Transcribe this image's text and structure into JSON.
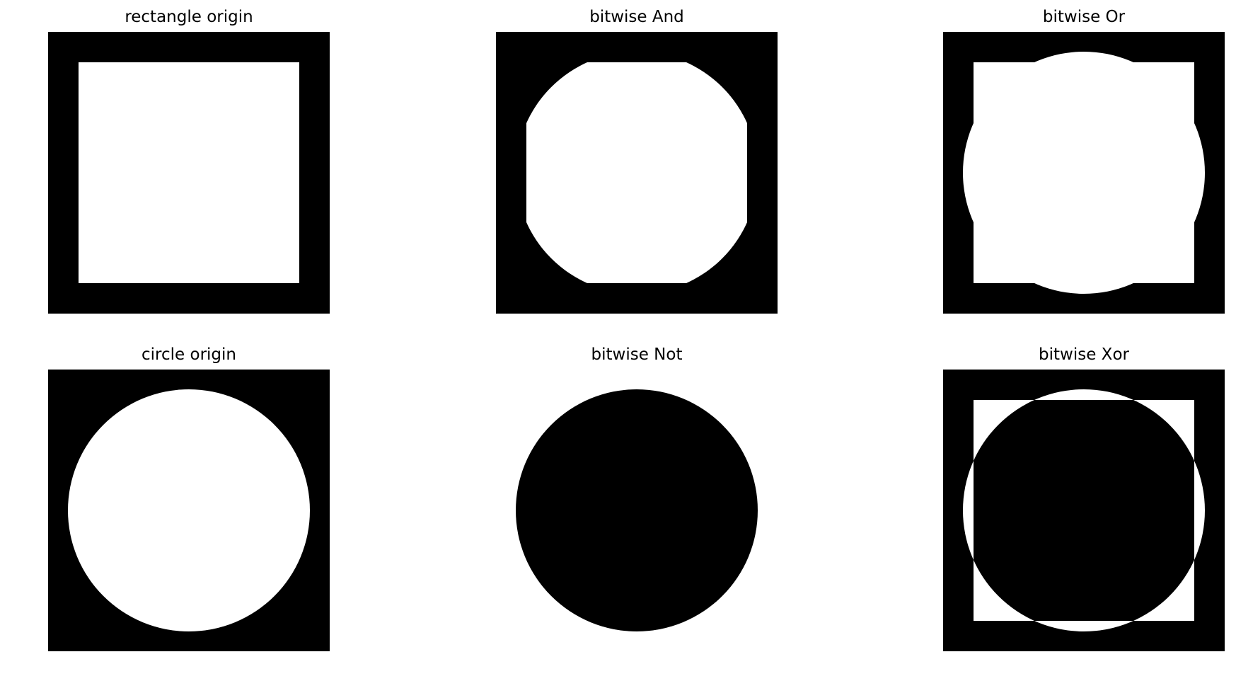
{
  "colors": {
    "foreground": "#ffffff",
    "background": "#000000",
    "page": "#ffffff"
  },
  "panels": [
    {
      "title": "rectangle origin",
      "image": "rectangle-origin-mask"
    },
    {
      "title": "bitwise And",
      "image": "bitwise-and-mask"
    },
    {
      "title": "bitwise Or",
      "image": "bitwise-or-mask"
    },
    {
      "title": "circle origin",
      "image": "circle-origin-mask"
    },
    {
      "title": "bitwise Not",
      "image": "bitwise-not-mask"
    },
    {
      "title": "bitwise Xor",
      "image": "bitwise-xor-mask"
    }
  ]
}
